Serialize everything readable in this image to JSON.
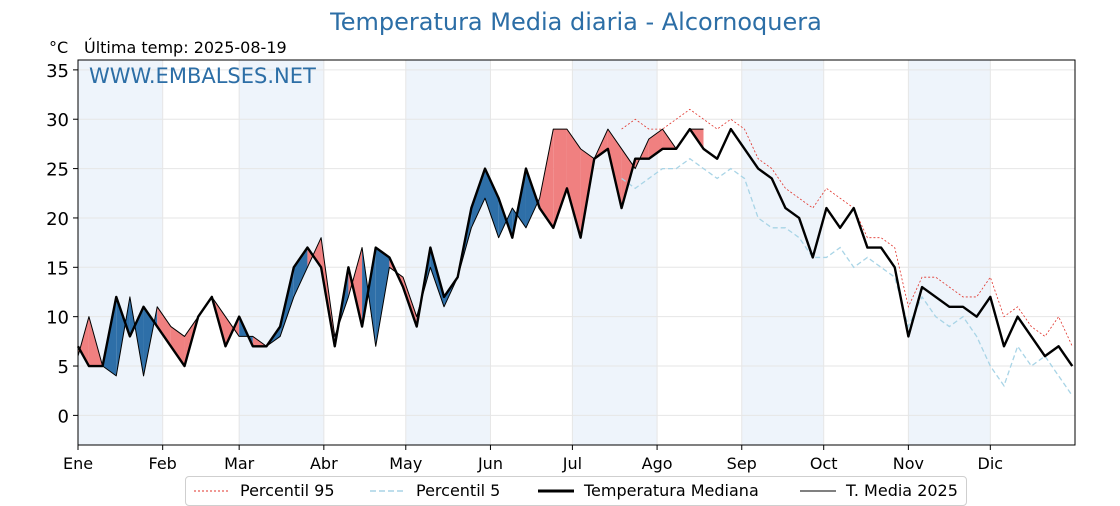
{
  "header": {
    "title": "Temperatura Media diaria - Alcornoquera",
    "unit": "°C",
    "last_update": "Última temp: 2025-08-19",
    "watermark": "WWW.EMBALSES.NET"
  },
  "legend": {
    "items": [
      {
        "label": "Percentil 95",
        "style": "dotted",
        "color": "#e0322a"
      },
      {
        "label": "Percentil 5",
        "style": "dashed",
        "color": "#a8d4e6"
      },
      {
        "label": "Temperatura Mediana",
        "style": "thick",
        "color": "#000000"
      },
      {
        "label": "T. Media 2025",
        "style": "thin",
        "color": "#000000"
      }
    ]
  },
  "colors": {
    "above_median": "#f08080",
    "below_median": "#2e6fa8",
    "p95": "#e0322a",
    "p5": "#a8d4e6",
    "shade": "#eef4fb",
    "title": "#2c6ea6"
  },
  "chart_data": {
    "type": "line",
    "ylim": [
      -3,
      36
    ],
    "xlim": [
      1,
      366
    ],
    "yticks": [
      0,
      5,
      10,
      15,
      20,
      25,
      30,
      35
    ],
    "months": [
      "Ene",
      "Feb",
      "Mar",
      "Abr",
      "May",
      "Jun",
      "Jul",
      "Ago",
      "Sep",
      "Oct",
      "Nov",
      "Dic"
    ],
    "month_start_days": [
      1,
      32,
      60,
      91,
      121,
      152,
      182,
      213,
      244,
      274,
      305,
      335
    ],
    "grid": true,
    "legend_position": "bottom",
    "series": [
      {
        "name": "Temperatura Mediana",
        "x": [
          1,
          5,
          10,
          15,
          20,
          25,
          30,
          35,
          40,
          45,
          50,
          55,
          60,
          65,
          70,
          75,
          80,
          85,
          90,
          95,
          100,
          105,
          110,
          115,
          120,
          125,
          130,
          135,
          140,
          145,
          150,
          155,
          160,
          165,
          170,
          175,
          180,
          185,
          190,
          195,
          200,
          205,
          210,
          215,
          220,
          225,
          230,
          235,
          240,
          245,
          250,
          255,
          260,
          265,
          270,
          275,
          280,
          285,
          290,
          295,
          300,
          305,
          310,
          315,
          320,
          325,
          330,
          335,
          340,
          345,
          350,
          355,
          360,
          365
        ],
        "y": [
          7,
          5,
          5,
          12,
          8,
          11,
          9,
          7,
          5,
          10,
          12,
          7,
          10,
          7,
          7,
          9,
          15,
          17,
          15,
          7,
          15,
          9,
          17,
          16,
          13,
          9,
          17,
          12,
          14,
          21,
          25,
          22,
          18,
          25,
          21,
          19,
          23,
          18,
          26,
          27,
          21,
          26,
          26,
          27,
          27,
          29,
          27,
          26,
          29,
          27,
          25,
          24,
          21,
          20,
          16,
          21,
          19,
          21,
          17,
          17,
          15,
          8,
          13,
          12,
          11,
          11,
          10,
          12,
          7,
          10,
          8,
          6,
          7,
          5
        ]
      },
      {
        "name": "T. Media 2025",
        "x": [
          1,
          5,
          10,
          15,
          20,
          25,
          30,
          35,
          40,
          45,
          50,
          55,
          60,
          65,
          70,
          75,
          80,
          85,
          90,
          95,
          100,
          105,
          110,
          115,
          120,
          125,
          130,
          135,
          140,
          145,
          150,
          155,
          160,
          165,
          170,
          175,
          180,
          185,
          190,
          195,
          200,
          205,
          210,
          215,
          220,
          225,
          230
        ],
        "y": [
          6,
          10,
          5,
          4,
          12,
          4,
          11,
          9,
          8,
          10,
          12,
          10,
          8,
          8,
          7,
          8,
          12,
          15,
          18,
          8,
          12,
          17,
          7,
          15,
          14,
          10,
          15,
          11,
          14,
          19,
          22,
          18,
          21,
          19,
          22,
          29,
          29,
          27,
          26,
          29,
          27,
          25,
          28,
          29,
          27,
          29,
          29
        ]
      },
      {
        "name": "Percentil 95",
        "x": [
          200,
          205,
          210,
          215,
          220,
          225,
          230,
          235,
          240,
          245,
          250,
          255,
          260,
          265,
          270,
          275,
          280,
          285,
          290,
          295,
          300,
          305,
          310,
          315,
          320,
          325,
          330,
          335,
          340,
          345,
          350,
          355,
          360,
          365
        ],
        "y": [
          29,
          30,
          29,
          29,
          30,
          31,
          30,
          29,
          30,
          29,
          26,
          25,
          23,
          22,
          21,
          23,
          22,
          21,
          18,
          18,
          17,
          11,
          14,
          14,
          13,
          12,
          12,
          14,
          10,
          11,
          9,
          8,
          10,
          7
        ]
      },
      {
        "name": "Percentil 5",
        "x": [
          200,
          205,
          210,
          215,
          220,
          225,
          230,
          235,
          240,
          245,
          250,
          255,
          260,
          265,
          270,
          275,
          280,
          285,
          290,
          295,
          300,
          305,
          310,
          315,
          320,
          325,
          330,
          335,
          340,
          345,
          350,
          355,
          360,
          365
        ],
        "y": [
          24,
          23,
          24,
          25,
          25,
          26,
          25,
          24,
          25,
          24,
          20,
          19,
          19,
          18,
          16,
          16,
          17,
          15,
          16,
          15,
          14,
          9,
          12,
          10,
          9,
          10,
          8,
          5,
          3,
          7,
          5,
          6,
          4,
          2
        ]
      }
    ]
  }
}
